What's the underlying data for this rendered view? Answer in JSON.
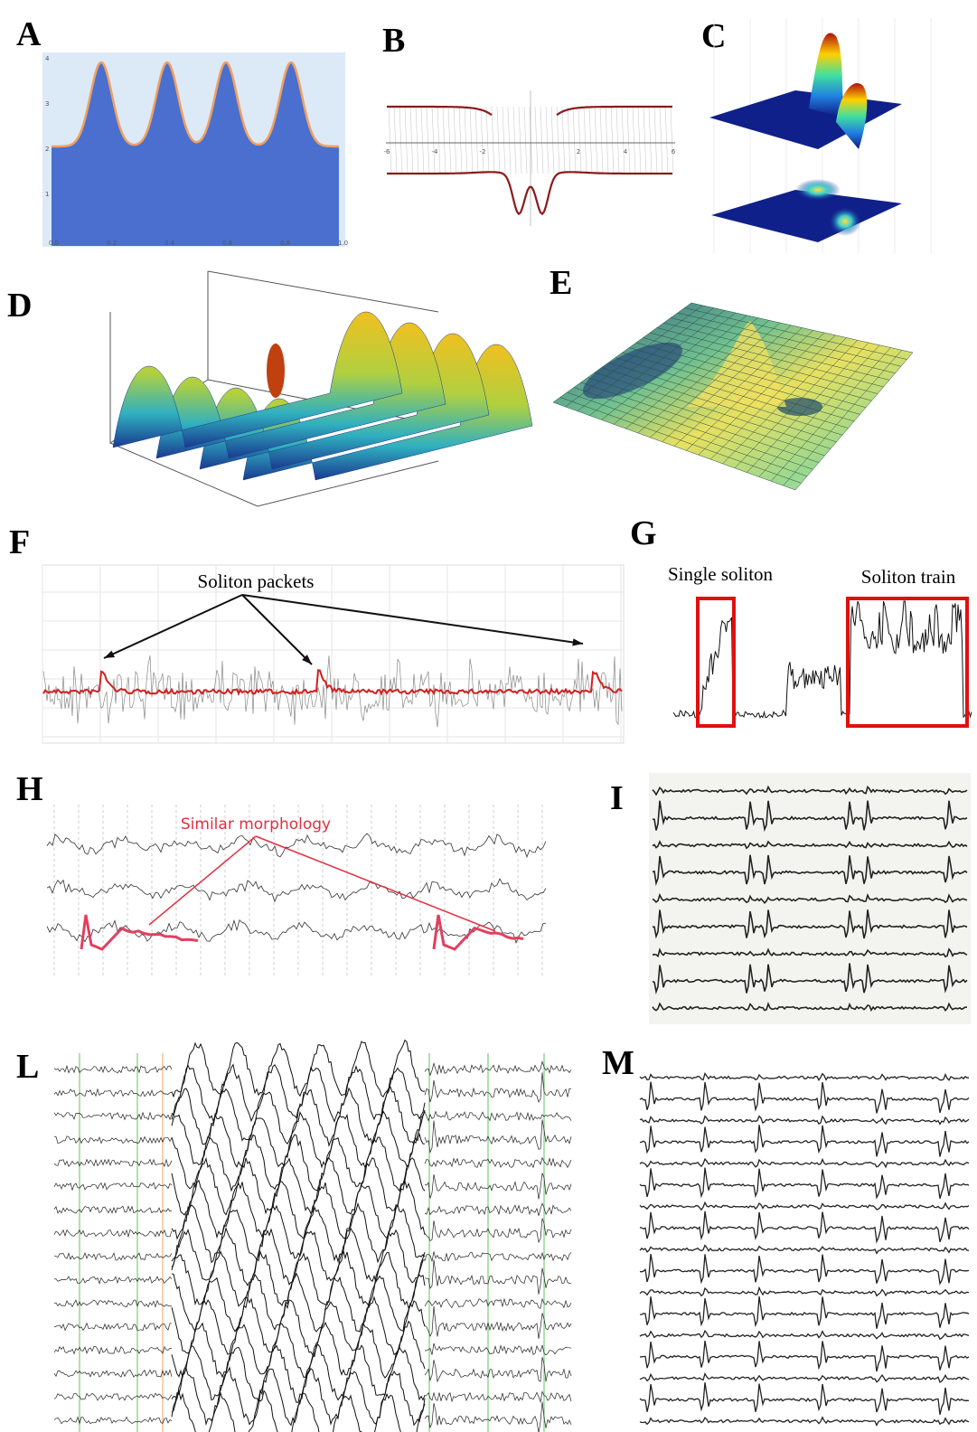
{
  "panels": {
    "A": {
      "label": "A",
      "xticks": [
        "0.0",
        "0.2",
        "0.4",
        "0.6",
        "0.8",
        "1.0"
      ],
      "yticks": [
        "1",
        "2",
        "3",
        "4"
      ]
    },
    "B": {
      "label": "B",
      "xticks": [
        "-6",
        "-4",
        "-2",
        "2",
        "4",
        "6"
      ]
    },
    "C": {
      "label": "C"
    },
    "D": {
      "label": "D"
    },
    "E": {
      "label": "E"
    },
    "F": {
      "label": "F",
      "annotation": "Soliton packets"
    },
    "G": {
      "label": "G",
      "annotations": [
        "Single soliton",
        "Soliton train"
      ]
    },
    "H": {
      "label": "H",
      "annotation": "Similar morphology"
    },
    "I": {
      "label": "I"
    },
    "L": {
      "label": "L"
    },
    "M": {
      "label": "M"
    }
  }
}
